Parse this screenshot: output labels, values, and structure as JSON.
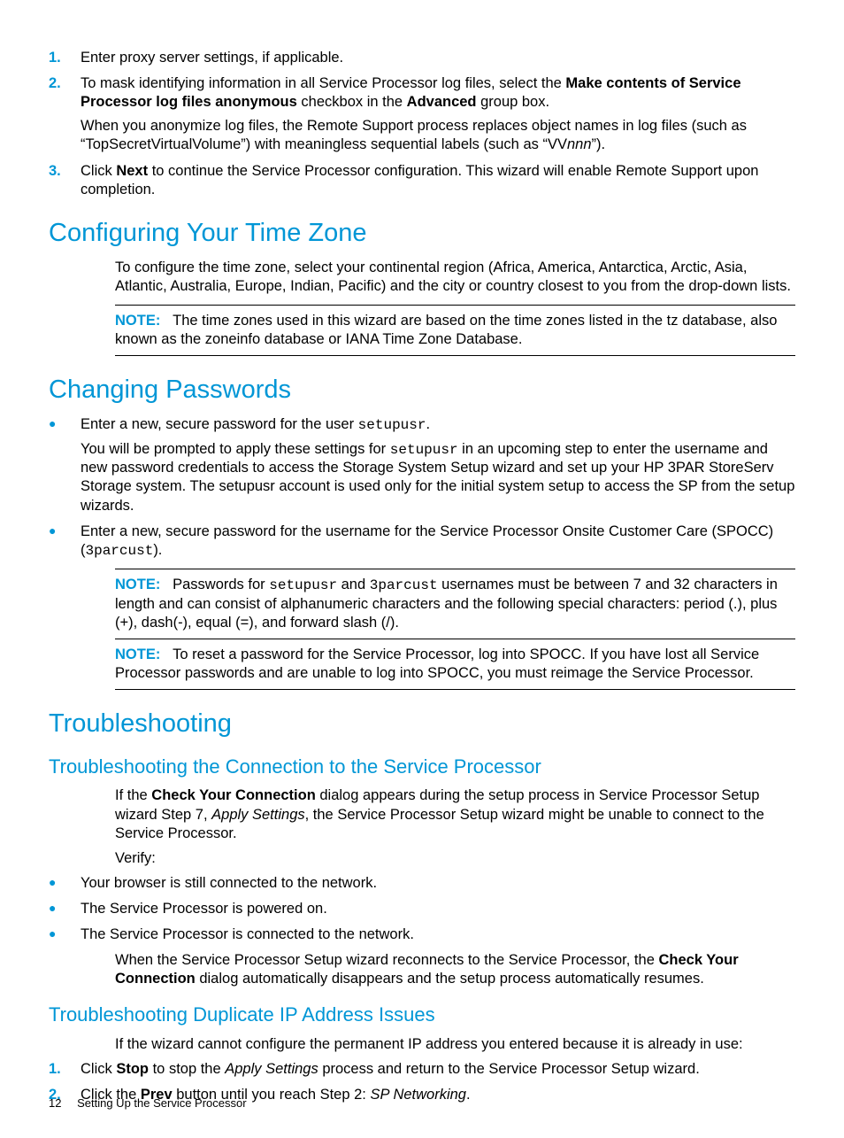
{
  "colors": {
    "accent": "#0096d6",
    "text": "#000000",
    "background": "#ffffff"
  },
  "intro_list": {
    "items": [
      {
        "num": "1.",
        "parts": [
          "Enter proxy server settings, if applicable."
        ]
      },
      {
        "num": "2.",
        "parts": [
          "To mask identifying information in all Service Processor log files, select the <b>Make contents of Service Processor log files anonymous</b> checkbox in the <b>Advanced</b> group box.",
          "When you anonymize log files, the Remote Support process replaces object names in log files (such as “TopSecretVirtualVolume”) with meaningless sequential labels (such as “VV<i>nnn</i>”)."
        ]
      },
      {
        "num": "3.",
        "parts": [
          "Click <b>Next</b> to continue the Service Processor configuration. This wizard will enable Remote Support upon completion."
        ]
      }
    ]
  },
  "timezone": {
    "heading": "Configuring Your Time Zone",
    "body": "To configure the time zone, select your continental region (Africa, America, Antarctica, Arctic, Asia, Atlantic, Australia, Europe, Indian, Pacific) and the city or country closest to you from the drop-down lists.",
    "note_label": "NOTE:",
    "note_body": "The time zones used in this wizard are based on the time zones listed in the tz database, also known as the zoneinfo database or IANA Time Zone Database."
  },
  "passwords": {
    "heading": "Changing Passwords",
    "bullets": [
      {
        "parts": [
          "Enter a new, secure password for the user <code>setupusr</code>.",
          "You will be prompted to apply these settings for <code>setupusr</code> in an upcoming step to enter the username and new password credentials to access the Storage System Setup wizard and set up your HP 3PAR StoreServ Storage system. The setupusr account is used only for the initial system setup to access the SP from the setup wizards."
        ]
      },
      {
        "parts": [
          "Enter a new, secure password for the username for the Service Processor Onsite Customer Care (SPOCC) (<code>3parcust</code>)."
        ]
      }
    ],
    "note1_label": "NOTE:",
    "note1_body": "Passwords for <code>setupusr</code> and <code>3parcust</code> usernames must be between 7 and 32 characters in length and can consist of alphanumeric characters and the following special characters: period (.), plus (+), dash(-), equal (=), and forward slash (/).",
    "note2_label": "NOTE:",
    "note2_body": "To reset a password for the Service Processor, log into SPOCC. If you have lost all Service Processor passwords and are unable to log into SPOCC, you must reimage the Service Processor."
  },
  "troubleshooting": {
    "heading": "Troubleshooting",
    "connection": {
      "heading": "Troubleshooting the Connection to the Service Processor",
      "body1": "If the <b>Check Your Connection</b> dialog appears during the setup process in Service Processor Setup wizard Step 7, <i>Apply Settings</i>, the Service Processor Setup wizard might be unable to connect to the Service Processor.",
      "verify_label": "Verify:",
      "bullets": [
        "Your browser is still connected to the network.",
        "The Service Processor is powered on.",
        "The Service Processor is connected to the network."
      ],
      "body2": "When the Service Processor Setup wizard reconnects to the Service Processor, the <b>Check Your Connection</b> dialog automatically disappears and the setup process automatically resumes."
    },
    "duplicate": {
      "heading": "Troubleshooting Duplicate IP Address Issues",
      "body": "If the wizard cannot configure the permanent IP address you entered because it is already in use:",
      "steps": [
        {
          "num": "1.",
          "text": "Click <b>Stop</b> to stop the <i>Apply Settings</i> process and return to the Service Processor Setup wizard."
        },
        {
          "num": "2.",
          "text": "Click the <b>Prev</b> button until you reach Step 2: <i>SP Networking</i>."
        }
      ]
    }
  },
  "footer": {
    "page_number": "12",
    "chapter": "Setting Up the Service Processor"
  }
}
